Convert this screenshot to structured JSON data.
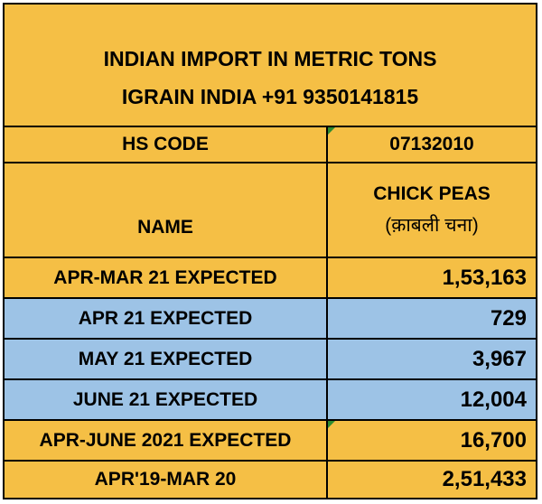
{
  "header": {
    "title_line1": "INDIAN IMPORT IN METRIC TONS",
    "title_line2": "IGRAIN INDIA +91 9350141815"
  },
  "hs_code": {
    "label": "HS CODE",
    "value": "07132010"
  },
  "name_row": {
    "label": "NAME",
    "product_en": "CHICK PEAS",
    "product_hi": "(क़ाबली चना)"
  },
  "rows": [
    {
      "label": "APR-MAR 21 EXPECTED",
      "value": "1,53,163",
      "highlight": false
    },
    {
      "label": "APR 21 EXPECTED",
      "value": "729",
      "highlight": true
    },
    {
      "label": "MAY 21 EXPECTED",
      "value": "3,967",
      "highlight": true
    },
    {
      "label": "JUNE 21 EXPECTED",
      "value": "12,004",
      "highlight": true
    },
    {
      "label": "APR-JUNE 2021 EXPECTED",
      "value": "16,700",
      "highlight": false
    },
    {
      "label": "APR'19-MAR 20",
      "value": "2,51,433",
      "highlight": false
    }
  ],
  "colors": {
    "orange": "#f5bf45",
    "blue": "#9dc3e6",
    "marker_green": "#2e8b30"
  }
}
